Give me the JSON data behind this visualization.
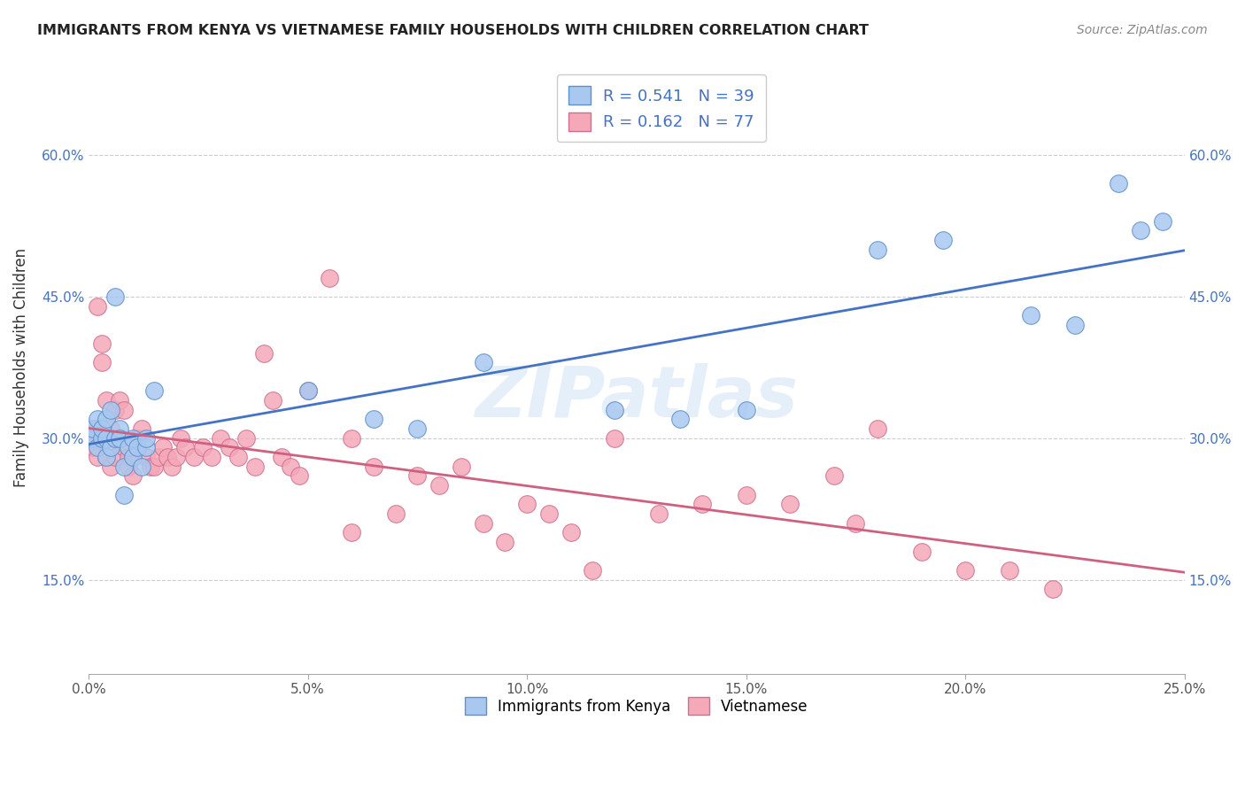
{
  "title": "IMMIGRANTS FROM KENYA VS VIETNAMESE FAMILY HOUSEHOLDS WITH CHILDREN CORRELATION CHART",
  "source": "Source: ZipAtlas.com",
  "ylabel": "Family Households with Children",
  "xlim": [
    0.0,
    0.25
  ],
  "ylim": [
    0.05,
    0.7
  ],
  "xticks": [
    0.0,
    0.05,
    0.1,
    0.15,
    0.2,
    0.25
  ],
  "yticks": [
    0.15,
    0.3,
    0.45,
    0.6
  ],
  "ytick_labels": [
    "15.0%",
    "30.0%",
    "45.0%",
    "60.0%"
  ],
  "xtick_labels": [
    "0.0%",
    "5.0%",
    "10.0%",
    "15.0%",
    "20.0%",
    "25.0%"
  ],
  "kenya_color": "#A8C8F0",
  "viet_color": "#F4A8B8",
  "kenya_edge_color": "#6090C8",
  "viet_edge_color": "#D07090",
  "kenya_line_color": "#4472C4",
  "viet_line_color": "#D06080",
  "r_kenya": 0.541,
  "n_kenya": 39,
  "r_viet": 0.162,
  "n_viet": 77,
  "legend_label_kenya": "Immigrants from Kenya",
  "legend_label_viet": "Vietnamese",
  "watermark": "ZIPatlas",
  "kenya_x": [
    0.001,
    0.001,
    0.002,
    0.002,
    0.003,
    0.003,
    0.004,
    0.004,
    0.004,
    0.005,
    0.005,
    0.006,
    0.006,
    0.007,
    0.007,
    0.008,
    0.008,
    0.009,
    0.01,
    0.01,
    0.011,
    0.012,
    0.013,
    0.013,
    0.015,
    0.05,
    0.065,
    0.075,
    0.09,
    0.12,
    0.135,
    0.15,
    0.18,
    0.195,
    0.215,
    0.225,
    0.235,
    0.24,
    0.245
  ],
  "kenya_y": [
    0.3,
    0.31,
    0.29,
    0.32,
    0.3,
    0.31,
    0.28,
    0.3,
    0.32,
    0.29,
    0.33,
    0.45,
    0.3,
    0.31,
    0.3,
    0.24,
    0.27,
    0.29,
    0.28,
    0.3,
    0.29,
    0.27,
    0.29,
    0.3,
    0.35,
    0.35,
    0.32,
    0.31,
    0.38,
    0.33,
    0.32,
    0.33,
    0.5,
    0.51,
    0.43,
    0.42,
    0.57,
    0.52,
    0.53
  ],
  "viet_x": [
    0.001,
    0.001,
    0.002,
    0.002,
    0.002,
    0.003,
    0.003,
    0.003,
    0.004,
    0.004,
    0.004,
    0.005,
    0.005,
    0.005,
    0.006,
    0.006,
    0.007,
    0.007,
    0.008,
    0.008,
    0.009,
    0.009,
    0.01,
    0.01,
    0.011,
    0.011,
    0.012,
    0.013,
    0.014,
    0.015,
    0.016,
    0.017,
    0.018,
    0.019,
    0.02,
    0.021,
    0.022,
    0.024,
    0.026,
    0.028,
    0.03,
    0.032,
    0.034,
    0.036,
    0.038,
    0.04,
    0.042,
    0.044,
    0.046,
    0.048,
    0.05,
    0.055,
    0.06,
    0.065,
    0.07,
    0.075,
    0.08,
    0.085,
    0.09,
    0.1,
    0.11,
    0.12,
    0.13,
    0.14,
    0.15,
    0.16,
    0.17,
    0.175,
    0.18,
    0.19,
    0.2,
    0.21,
    0.22,
    0.06,
    0.095,
    0.105,
    0.115
  ],
  "viet_y": [
    0.29,
    0.3,
    0.28,
    0.31,
    0.44,
    0.38,
    0.3,
    0.4,
    0.3,
    0.28,
    0.34,
    0.29,
    0.31,
    0.27,
    0.28,
    0.33,
    0.34,
    0.3,
    0.29,
    0.33,
    0.28,
    0.27,
    0.28,
    0.26,
    0.3,
    0.29,
    0.31,
    0.28,
    0.27,
    0.27,
    0.28,
    0.29,
    0.28,
    0.27,
    0.28,
    0.3,
    0.29,
    0.28,
    0.29,
    0.28,
    0.3,
    0.29,
    0.28,
    0.3,
    0.27,
    0.39,
    0.34,
    0.28,
    0.27,
    0.26,
    0.35,
    0.47,
    0.3,
    0.27,
    0.22,
    0.26,
    0.25,
    0.27,
    0.21,
    0.23,
    0.2,
    0.3,
    0.22,
    0.23,
    0.24,
    0.23,
    0.26,
    0.21,
    0.31,
    0.18,
    0.16,
    0.16,
    0.14,
    0.2,
    0.19,
    0.22,
    0.16
  ]
}
